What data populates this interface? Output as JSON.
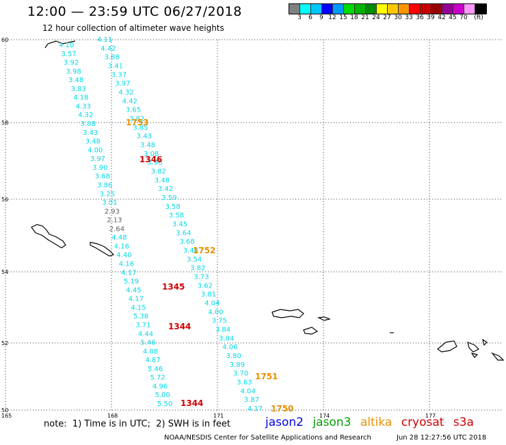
{
  "header": {
    "title": "12:00 — 23:59 UTC 06/27/2018",
    "subtitle": "12 hour collection of altimeter wave heights"
  },
  "legend": {
    "colors": [
      "#808080",
      "#00ffff",
      "#00c8ff",
      "#0000ff",
      "#009bff",
      "#00dc00",
      "#00b400",
      "#008c00",
      "#ffff00",
      "#ffc800",
      "#ff9600",
      "#ff0000",
      "#c80000",
      "#960000",
      "#960096",
      "#c800c8",
      "#ff96ff",
      "#000000"
    ],
    "labels": [
      "3",
      "6",
      "9",
      "12",
      "15",
      "18",
      "21",
      "24",
      "27",
      "30",
      "33",
      "36",
      "39",
      "42",
      "45",
      "70",
      "(ft)"
    ]
  },
  "axes": {
    "lat_labels": [
      "60",
      "58",
      "56",
      "54",
      "52",
      "50"
    ],
    "lon_labels": [
      "165",
      "168",
      "171",
      "174",
      "177"
    ]
  },
  "tracks": {
    "track1": [
      "4.11",
      "4.42",
      "3.88",
      "3.41",
      "3.37",
      "3.97",
      "4.32",
      "4.42",
      "3.65",
      "3.82",
      "3.85",
      "3.43",
      "3.48",
      "3.08",
      "3.96",
      "3.82",
      "3.48",
      "3.42",
      "3.59",
      "3.58",
      "3.58",
      "3.45",
      "3.64",
      "3.68",
      "3.48",
      "3.54",
      "3.82",
      "3.73",
      "3.62",
      "3.81",
      "4.04",
      "4.00",
      "3.75",
      "3.84",
      "3.84",
      "4.06",
      "3.80",
      "3.89",
      "3.70",
      "3.63",
      "4.04",
      "3.87",
      "4.17"
    ],
    "track2": [
      "4.10",
      "3.57",
      "3.92",
      "3.98",
      "3.48",
      "3.83",
      "4.18",
      "4.33",
      "4.32",
      "3.88",
      "3.43",
      "3.48",
      "4.00",
      "3.97",
      "3.90",
      "3.68",
      "3.86",
      "3.25",
      "3.01",
      "2.93",
      "2.13",
      "2.64",
      "4.48",
      "4.16",
      "4.40",
      "4.16",
      "4.17",
      "5.19",
      "4.45",
      "4.17",
      "4.15",
      "5.38",
      "3.71",
      "4.44",
      "5.46",
      "4.08",
      "4.87",
      "5.46",
      "5.72",
      "4.96",
      "5.00",
      "5.50"
    ],
    "time_labels": [
      {
        "text": "1753",
        "mission": "altika"
      },
      {
        "text": "1346",
        "mission": "cryosat"
      },
      {
        "text": "1752",
        "mission": "altika"
      },
      {
        "text": "1345",
        "mission": "cryosat"
      },
      {
        "text": "1344",
        "mission": "cryosat"
      },
      {
        "text": "1751",
        "mission": "altika"
      },
      {
        "text": "1344",
        "mission": "cryosat"
      },
      {
        "text": "1750",
        "mission": "altika"
      }
    ]
  },
  "colors": {
    "value_default": "#00d8e8",
    "value_low": "#606060",
    "altika": "#e89000",
    "cryosat": "#d00000",
    "jason2": "#0000e0",
    "jason3": "#00a000",
    "s3a": "#d00000",
    "grid": "#333333"
  },
  "footer": {
    "note": "note:  1) Time is in UTC;  2) SWH is in feet",
    "missions": [
      "jason2",
      "jason3",
      "altika",
      "cryosat",
      "s3a"
    ],
    "credit": "NOAA/NESDIS Center for Satellite Applications and Research",
    "timestamp": "Jun 28 12:27:56 UTC 2018"
  }
}
